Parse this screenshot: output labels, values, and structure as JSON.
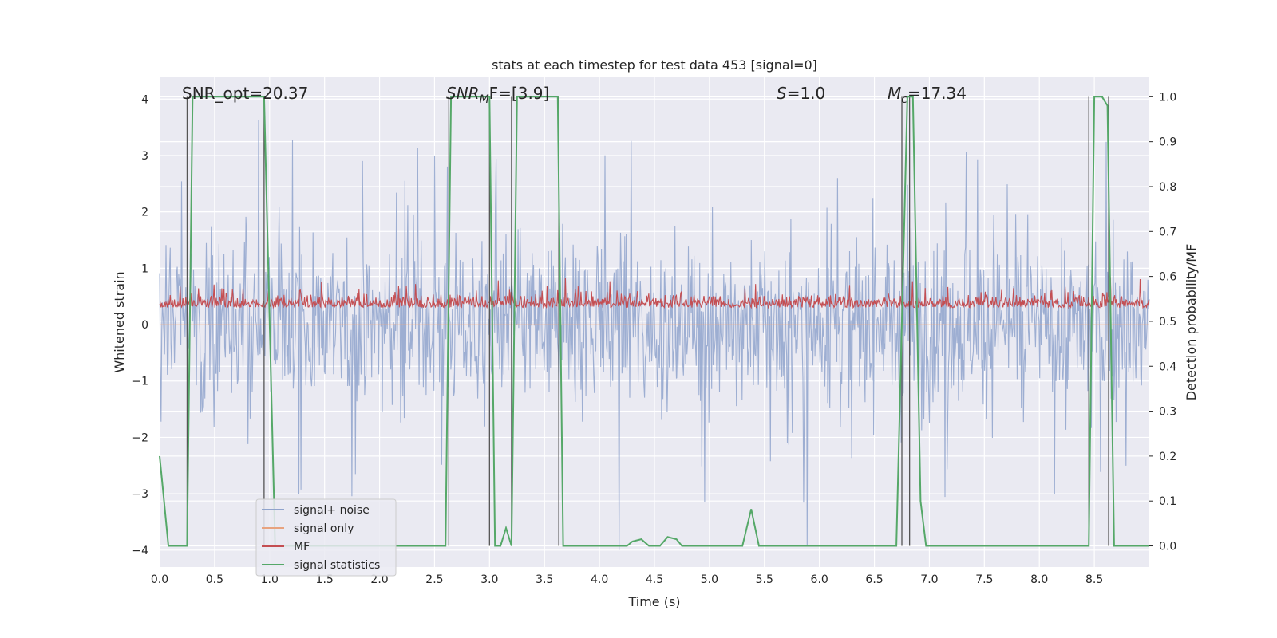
{
  "chart_data": {
    "type": "line",
    "title": "stats at each timestep for test data 453 [signal=0]",
    "xlabel": "Time (s)",
    "ylabel": "Whitened strain",
    "y2label": "Detection probability/MF",
    "xlim": [
      0.0,
      9.0
    ],
    "ylim": [
      -4.3,
      4.4
    ],
    "y2lim": [
      -0.047,
      1.045
    ],
    "grid": true,
    "legend_position": "lower-left",
    "xticks": [
      "0.0",
      "0.5",
      "1.0",
      "1.5",
      "2.0",
      "2.5",
      "3.0",
      "3.5",
      "4.0",
      "4.5",
      "5.0",
      "5.5",
      "6.0",
      "6.5",
      "7.0",
      "7.5",
      "8.0",
      "8.5"
    ],
    "yticks": [
      "4",
      "3",
      "2",
      "1",
      "0",
      "−1",
      "−2",
      "−3",
      "−4"
    ],
    "y2ticks": [
      "1.0",
      "0.9",
      "0.8",
      "0.7",
      "0.6",
      "0.5",
      "0.4",
      "0.3",
      "0.2",
      "0.1",
      "0.0"
    ],
    "annotations": {
      "snr_opt": {
        "label": "SNR_opt=20.37"
      },
      "snr_mf": {
        "prefix": "SNR",
        "sub": "M",
        "suffix": "F=[3.9]"
      },
      "s_stat": {
        "prefix": "S",
        "suffix": "=1.0"
      },
      "mc": {
        "prefix": "M",
        "sub": "c",
        "suffix": "=17.34"
      }
    },
    "series": [
      {
        "name": "signal+ noise",
        "color": "#8fa3cc",
        "kind": "noise",
        "range": [
          -4.0,
          4.0
        ],
        "seed": 453
      },
      {
        "name": "signal only",
        "color": "#e8a37f",
        "kind": "zero",
        "values": [
          0
        ]
      },
      {
        "name": "MF",
        "color": "#c44e52",
        "kind": "noise-band",
        "range": [
          0.0,
          0.95
        ],
        "axis": "right-scaled"
      },
      {
        "name": "signal statistics",
        "color": "#55a868",
        "axis": "right",
        "x": [
          0.0,
          0.02,
          0.08,
          0.25,
          0.3,
          0.95,
          1.05,
          1.1,
          2.6,
          2.65,
          2.7,
          3.0,
          3.05,
          3.1,
          3.15,
          3.2,
          3.25,
          3.3,
          3.62,
          3.67,
          3.75,
          4.25,
          4.3,
          4.38,
          4.45,
          4.55,
          4.62,
          4.7,
          4.75,
          5.3,
          5.38,
          5.45,
          5.5,
          6.7,
          6.8,
          6.85,
          6.92,
          6.97,
          8.45,
          8.5,
          8.57,
          8.62,
          8.68,
          9.0
        ],
        "values": [
          0.2,
          0.15,
          0.0,
          0.0,
          1.0,
          1.0,
          0.0,
          0.0,
          0.0,
          1.0,
          1.0,
          1.0,
          0.0,
          0.0,
          0.04,
          0.0,
          1.0,
          1.0,
          1.0,
          0.0,
          0.0,
          0.0,
          0.01,
          0.015,
          0.0,
          0.0,
          0.02,
          0.015,
          0.0,
          0.0,
          0.082,
          0.0,
          0.0,
          0.0,
          1.0,
          1.0,
          0.1,
          0.0,
          0.0,
          1.0,
          1.0,
          0.98,
          0.0,
          0.0
        ]
      }
    ],
    "vlines": [
      0.25,
      0.95,
      2.63,
      3.0,
      3.2,
      3.63,
      6.75,
      6.82,
      8.45,
      8.63
    ],
    "legend": [
      "signal+ noise",
      "signal only",
      "MF",
      "signal statistics"
    ]
  }
}
